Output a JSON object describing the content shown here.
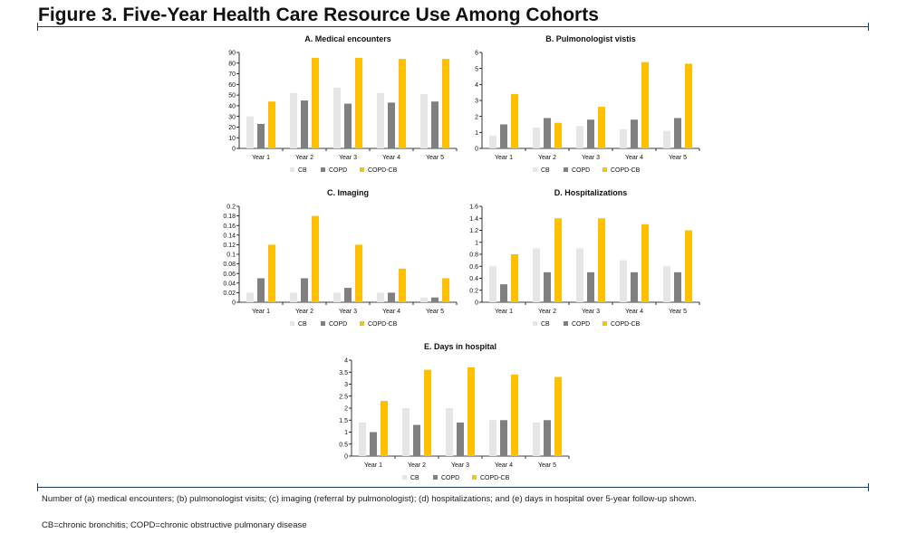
{
  "figure_title": "Figure 3. Five-Year Health Care Resource Use Among Cohorts",
  "colors": {
    "CB": "#e6e6e6",
    "COPD": "#808080",
    "COPD-CB": "#ffc000",
    "rule": "#1f3a60"
  },
  "footnotes": {
    "line1": "Number of (a) medical encounters; (b) pulmonologist visits; (c) imaging (referral by pulmonologist); (d) hospitalizations; and (e) days in hospital over 5-year follow-up shown.",
    "line2": "CB=chronic bronchitis; COPD=chronic obstructive pulmonary disease"
  },
  "chart_data": [
    {
      "id": "medical",
      "type": "bar",
      "title": "A. Medical encounters",
      "categories": [
        "Year 1",
        "Year 2",
        "Year 3",
        "Year 4",
        "Year 5"
      ],
      "series": [
        {
          "name": "CB",
          "values": [
            30,
            52,
            57,
            52,
            51
          ]
        },
        {
          "name": "COPD",
          "values": [
            23,
            45,
            42,
            43,
            44
          ]
        },
        {
          "name": "COPD-CB",
          "values": [
            44,
            85,
            85,
            84,
            84
          ]
        }
      ],
      "ylim": [
        0,
        90
      ],
      "yticks": [
        "0",
        "10",
        "20",
        "30",
        "40",
        "50",
        "60",
        "70",
        "80",
        "90"
      ],
      "legend": "bottom"
    },
    {
      "id": "pulmo",
      "type": "bar",
      "title": "B. Pulmonologist vistis",
      "categories": [
        "Year 1",
        "Year 2",
        "Year 3",
        "Year 4",
        "Year 5"
      ],
      "series": [
        {
          "name": "CB",
          "values": [
            0.8,
            1.3,
            1.4,
            1.2,
            1.1
          ]
        },
        {
          "name": "COPD",
          "values": [
            1.5,
            1.9,
            1.8,
            1.8,
            1.9
          ]
        },
        {
          "name": "COPD-CB",
          "values": [
            3.4,
            1.6,
            2.6,
            5.4,
            5.3
          ]
        }
      ],
      "ylim": [
        0,
        6
      ],
      "yticks": [
        "0",
        "1",
        "2",
        "3",
        "4",
        "5",
        "6"
      ],
      "legend": "bottom"
    },
    {
      "id": "imaging",
      "type": "bar",
      "title": "C. Imaging",
      "categories": [
        "Year 1",
        "Year 2",
        "Year 3",
        "Year 4",
        "Year 5"
      ],
      "series": [
        {
          "name": "CB",
          "values": [
            0.02,
            0.02,
            0.02,
            0.02,
            0.01
          ]
        },
        {
          "name": "COPD",
          "values": [
            0.05,
            0.05,
            0.03,
            0.02,
            0.01
          ]
        },
        {
          "name": "COPD-CB",
          "values": [
            0.12,
            0.18,
            0.12,
            0.07,
            0.05
          ]
        }
      ],
      "ylim": [
        0,
        0.2
      ],
      "yticks": [
        "0",
        "0.02",
        "0.04",
        "0.06",
        "0.08",
        "0.1",
        "0.12",
        "0.14",
        "0.16",
        "0.18",
        "0.2"
      ],
      "legend": "bottom"
    },
    {
      "id": "hosp",
      "type": "bar",
      "title": "D. Hospitalizations",
      "categories": [
        "Year 1",
        "Year 2",
        "Year 3",
        "Year 4",
        "Year 5"
      ],
      "series": [
        {
          "name": "CB",
          "values": [
            0.6,
            0.9,
            0.9,
            0.7,
            0.6
          ]
        },
        {
          "name": "COPD",
          "values": [
            0.3,
            0.5,
            0.5,
            0.5,
            0.5
          ]
        },
        {
          "name": "COPD-CB",
          "values": [
            0.8,
            1.4,
            1.4,
            1.3,
            1.2
          ]
        }
      ],
      "ylim": [
        0,
        1.6
      ],
      "yticks": [
        "0",
        "0.2",
        "0.4",
        "0.6",
        "0.8",
        "1",
        "1.2",
        "1.4",
        "1.6"
      ],
      "legend": "bottom"
    },
    {
      "id": "days",
      "type": "bar",
      "title": "E. Days in hospital",
      "categories": [
        "Year 1",
        "Year 2",
        "Year 3",
        "Year 4",
        "Year 5"
      ],
      "series": [
        {
          "name": "CB",
          "values": [
            1.4,
            2.0,
            2.0,
            1.5,
            1.4
          ]
        },
        {
          "name": "COPD",
          "values": [
            1.0,
            1.3,
            1.4,
            1.5,
            1.5
          ]
        },
        {
          "name": "COPD-CB",
          "values": [
            2.3,
            3.6,
            3.7,
            3.4,
            3.3
          ]
        }
      ],
      "ylim": [
        0,
        4
      ],
      "yticks": [
        "0",
        "0.5",
        "1",
        "1.5",
        "2",
        "2.5",
        "3",
        "3.5",
        "4"
      ],
      "legend": "bottom"
    }
  ]
}
